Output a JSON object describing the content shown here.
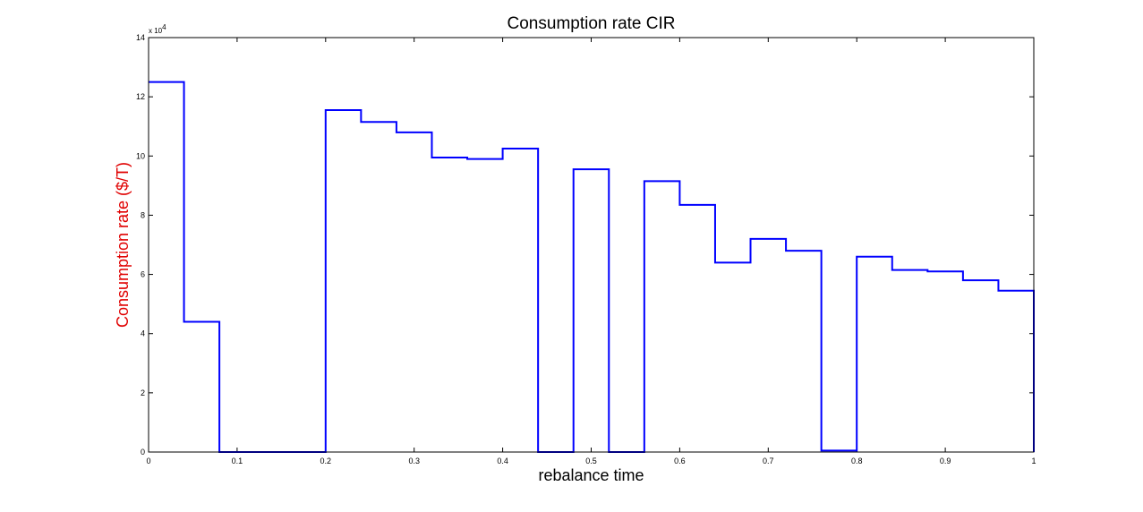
{
  "chart_data": {
    "type": "line",
    "style": "stairs",
    "title": "Consumption rate CIR",
    "xlabel": "rebalance time",
    "ylabel": "Consumption rate ($/T)",
    "ylabel_color": "#e00000",
    "line_color": "#0000ff",
    "y_exponent_label": "x 10",
    "y_exponent_power": "4",
    "xlim": [
      0,
      1
    ],
    "ylim": [
      0,
      14
    ],
    "x_ticks": [
      0,
      0.1,
      0.2,
      0.3,
      0.4,
      0.5,
      0.6,
      0.7,
      0.8,
      0.9,
      1
    ],
    "x_tick_labels": [
      "0",
      "0.1",
      "0.2",
      "0.3",
      "0.4",
      "0.5",
      "0.6",
      "0.7",
      "0.8",
      "0.9",
      "1"
    ],
    "y_ticks": [
      0,
      2,
      4,
      6,
      8,
      10,
      12,
      14
    ],
    "y_tick_labels": [
      "0",
      "2",
      "4",
      "6",
      "8",
      "10",
      "12",
      "14"
    ],
    "grid": false,
    "series": [
      {
        "step_x": [
          0,
          0.04,
          0.08,
          0.12,
          0.16,
          0.2,
          0.24,
          0.28,
          0.32,
          0.36,
          0.4,
          0.44,
          0.48,
          0.52,
          0.56,
          0.6,
          0.64,
          0.68,
          0.72,
          0.76,
          0.8,
          0.84,
          0.88,
          0.92,
          0.96,
          1.0
        ],
        "values": [
          12.5,
          4.4,
          0,
          0,
          0,
          11.55,
          11.15,
          10.8,
          9.95,
          9.9,
          10.25,
          0,
          9.55,
          0,
          9.15,
          8.35,
          6.4,
          7.2,
          6.8,
          0.05,
          6.6,
          6.15,
          6.1,
          5.8,
          5.45
        ]
      }
    ]
  }
}
